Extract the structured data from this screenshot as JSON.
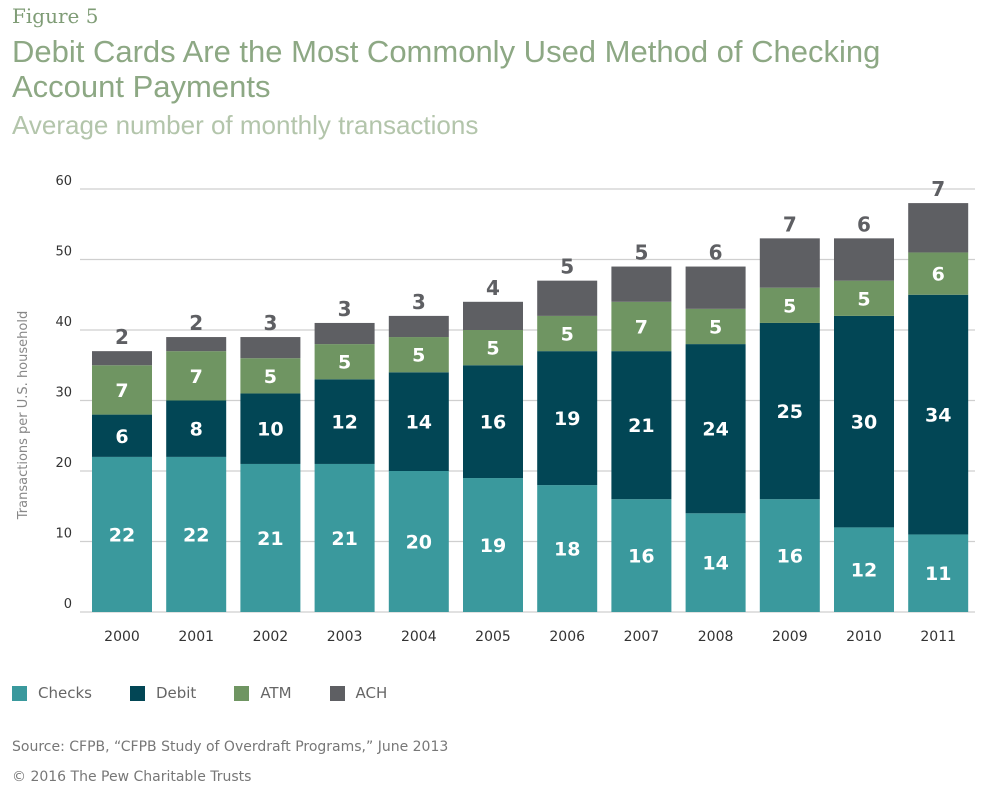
{
  "figure_label": "Figure 5",
  "source": "Source: CFPB, “CFPB Study of Overdraft Programs,” June 2013",
  "copyright": "© 2016 The Pew Charitable Trusts",
  "chart_data": {
    "type": "bar",
    "stacked": true,
    "title": "Debit Cards Are the Most Commonly Used Method of Checking Account Payments",
    "subtitle": "Average number of monthly transactions",
    "xlabel": "",
    "ylabel": "Transactions per U.S. household",
    "ylim": [
      0,
      60
    ],
    "yticks": [
      0,
      10,
      20,
      30,
      40,
      50,
      60
    ],
    "grid": true,
    "legend_placement": "bottom-left",
    "categories": [
      "2000",
      "2001",
      "2002",
      "2003",
      "2004",
      "2005",
      "2006",
      "2007",
      "2008",
      "2009",
      "2010",
      "2011"
    ],
    "series": [
      {
        "name": "Checks",
        "color": "#3a999d",
        "values": [
          22,
          22,
          21,
          21,
          20,
          19,
          18,
          16,
          14,
          16,
          12,
          11
        ]
      },
      {
        "name": "Debit",
        "color": "#024655",
        "values": [
          6,
          8,
          10,
          12,
          14,
          16,
          19,
          21,
          24,
          25,
          30,
          34
        ]
      },
      {
        "name": "ATM",
        "color": "#6f9562",
        "values": [
          7,
          7,
          5,
          5,
          5,
          5,
          5,
          7,
          5,
          5,
          5,
          6
        ]
      },
      {
        "name": "ACH",
        "color": "#5e5f63",
        "values": [
          2,
          2,
          3,
          3,
          3,
          4,
          5,
          5,
          6,
          7,
          6,
          7
        ]
      }
    ]
  }
}
